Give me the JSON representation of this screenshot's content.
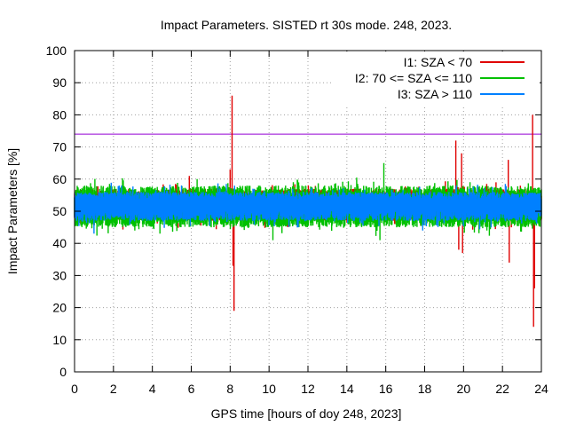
{
  "chart_data": {
    "type": "line",
    "title": "Impact Parameters. SISTED rt 30s mode. 248, 2023.",
    "xlabel": "GPS time [hours of doy 248, 2023]",
    "ylabel": "Impact Parameters [%]",
    "xlim": [
      0,
      24
    ],
    "ylim": [
      0,
      100
    ],
    "x_ticks": [
      "0",
      "2",
      "4",
      "6",
      "8",
      "10",
      "12",
      "14",
      "16",
      "18",
      "20",
      "22",
      "24"
    ],
    "y_ticks": [
      "0",
      "10",
      "20",
      "30",
      "40",
      "50",
      "60",
      "70",
      "80",
      "90",
      "100"
    ],
    "grid": true,
    "legend_position": "top-right",
    "threshold": {
      "value": 74,
      "color": "#9400d3"
    },
    "series": [
      {
        "name": "I1: SZA < 70",
        "color": "#e00000",
        "center": 51,
        "band": [
          47,
          57
        ],
        "spikes": [
          [
            8.0,
            63
          ],
          [
            8.1,
            86
          ],
          [
            8.15,
            33
          ],
          [
            8.2,
            19
          ],
          [
            19.6,
            72
          ],
          [
            19.75,
            38
          ],
          [
            19.9,
            68
          ],
          [
            19.95,
            37
          ],
          [
            22.3,
            66
          ],
          [
            22.35,
            34
          ],
          [
            23.55,
            80
          ],
          [
            23.6,
            14
          ],
          [
            23.65,
            26
          ],
          [
            5.9,
            61
          ]
        ]
      },
      {
        "name": "I2: 70 <= SZA <= 110",
        "color": "#00c000",
        "center": 51,
        "band": [
          45,
          58
        ],
        "spikes": [
          [
            15.9,
            65
          ],
          [
            15.7,
            41
          ],
          [
            3.1,
            44
          ],
          [
            10.2,
            41
          ],
          [
            6.3,
            60
          ],
          [
            13.2,
            58
          ],
          [
            21.2,
            44
          ]
        ]
      },
      {
        "name": "I3: SZA > 110",
        "color": "#0080ff",
        "center": 52,
        "band": [
          47,
          56
        ],
        "spikes": [
          [
            5.5,
            58
          ],
          [
            1.0,
            43
          ],
          [
            17.9,
            44
          ],
          [
            20.3,
            57
          ],
          [
            11.5,
            45
          ]
        ]
      }
    ]
  }
}
